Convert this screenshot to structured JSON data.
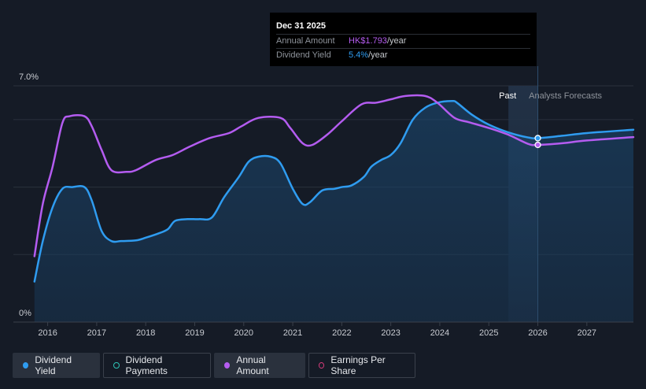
{
  "tooltip": {
    "date": "Dec 31 2025",
    "annual_amount_label": "Annual Amount",
    "annual_amount_value": "HK$1.793",
    "annual_amount_unit": "/year",
    "dividend_yield_label": "Dividend Yield",
    "dividend_yield_value": "5.4%",
    "dividend_yield_unit": "/year"
  },
  "legend": [
    {
      "label": "Dividend Yield",
      "color": "#2f9cf0",
      "filled": true
    },
    {
      "label": "Dividend Payments",
      "color": "#2ec4b6",
      "filled": false
    },
    {
      "label": "Annual Amount",
      "color": "#b45cf0",
      "filled": true
    },
    {
      "label": "Earnings Per Share",
      "color": "#d63b7a",
      "filled": false
    }
  ],
  "colors": {
    "background": "#151b26",
    "dividend_yield": "#2f9cf0",
    "annual_amount": "#b45cf0",
    "grid": "#2a313c"
  },
  "chart_data": {
    "type": "line",
    "x_ticks": [
      "2016",
      "2017",
      "2018",
      "2019",
      "2020",
      "2021",
      "2022",
      "2023",
      "2024",
      "2025",
      "2026",
      "2027"
    ],
    "y_tick_labels": [
      "0%",
      "7.0%"
    ],
    "ylim": [
      0,
      7.0
    ],
    "xlim": [
      2015.3,
      2027.95
    ],
    "past_label": "Past",
    "forecast_label": "Analysts Forecasts",
    "forecast_start": 2025.4,
    "marker_x": 2026.0,
    "series": [
      {
        "name": "Dividend Yield",
        "color": "#2f9cf0",
        "area": true,
        "points": [
          [
            2015.73,
            1.2
          ],
          [
            2015.9,
            2.4
          ],
          [
            2016.1,
            3.4
          ],
          [
            2016.3,
            3.95
          ],
          [
            2016.5,
            4.0
          ],
          [
            2016.75,
            4.0
          ],
          [
            2016.9,
            3.6
          ],
          [
            2017.1,
            2.7
          ],
          [
            2017.3,
            2.4
          ],
          [
            2017.5,
            2.4
          ],
          [
            2017.8,
            2.42
          ],
          [
            2018.0,
            2.5
          ],
          [
            2018.25,
            2.62
          ],
          [
            2018.45,
            2.75
          ],
          [
            2018.6,
            3.0
          ],
          [
            2018.85,
            3.05
          ],
          [
            2019.1,
            3.05
          ],
          [
            2019.35,
            3.1
          ],
          [
            2019.6,
            3.7
          ],
          [
            2019.9,
            4.3
          ],
          [
            2020.1,
            4.75
          ],
          [
            2020.3,
            4.9
          ],
          [
            2020.55,
            4.9
          ],
          [
            2020.75,
            4.7
          ],
          [
            2021.0,
            3.95
          ],
          [
            2021.2,
            3.5
          ],
          [
            2021.35,
            3.55
          ],
          [
            2021.6,
            3.9
          ],
          [
            2021.85,
            3.95
          ],
          [
            2022.0,
            4.0
          ],
          [
            2022.2,
            4.05
          ],
          [
            2022.45,
            4.3
          ],
          [
            2022.6,
            4.6
          ],
          [
            2022.8,
            4.8
          ],
          [
            2023.0,
            4.95
          ],
          [
            2023.2,
            5.3
          ],
          [
            2023.45,
            6.0
          ],
          [
            2023.7,
            6.35
          ],
          [
            2023.95,
            6.5
          ],
          [
            2024.25,
            6.55
          ],
          [
            2024.35,
            6.5
          ],
          [
            2024.65,
            6.15
          ],
          [
            2025.0,
            5.85
          ],
          [
            2025.4,
            5.62
          ],
          [
            2025.8,
            5.47
          ],
          [
            2026.0,
            5.45
          ],
          [
            2026.5,
            5.52
          ],
          [
            2027.0,
            5.6
          ],
          [
            2027.95,
            5.7
          ]
        ]
      },
      {
        "name": "Annual Amount",
        "color": "#b45cf0",
        "area": false,
        "points": [
          [
            2015.73,
            1.95
          ],
          [
            2015.9,
            3.5
          ],
          [
            2016.1,
            4.6
          ],
          [
            2016.3,
            5.9
          ],
          [
            2016.45,
            6.1
          ],
          [
            2016.75,
            6.1
          ],
          [
            2016.9,
            5.8
          ],
          [
            2017.1,
            5.1
          ],
          [
            2017.3,
            4.5
          ],
          [
            2017.6,
            4.45
          ],
          [
            2017.8,
            4.5
          ],
          [
            2018.2,
            4.8
          ],
          [
            2018.55,
            4.95
          ],
          [
            2018.9,
            5.2
          ],
          [
            2019.3,
            5.45
          ],
          [
            2019.7,
            5.6
          ],
          [
            2019.95,
            5.8
          ],
          [
            2020.3,
            6.05
          ],
          [
            2020.75,
            6.05
          ],
          [
            2020.95,
            5.75
          ],
          [
            2021.2,
            5.3
          ],
          [
            2021.4,
            5.25
          ],
          [
            2021.7,
            5.55
          ],
          [
            2022.0,
            5.95
          ],
          [
            2022.4,
            6.45
          ],
          [
            2022.7,
            6.5
          ],
          [
            2023.0,
            6.6
          ],
          [
            2023.3,
            6.7
          ],
          [
            2023.7,
            6.7
          ],
          [
            2023.95,
            6.5
          ],
          [
            2024.3,
            6.05
          ],
          [
            2024.6,
            5.92
          ],
          [
            2025.0,
            5.75
          ],
          [
            2025.4,
            5.55
          ],
          [
            2025.8,
            5.28
          ],
          [
            2026.0,
            5.25
          ],
          [
            2026.5,
            5.3
          ],
          [
            2027.0,
            5.38
          ],
          [
            2027.95,
            5.48
          ]
        ]
      }
    ]
  }
}
